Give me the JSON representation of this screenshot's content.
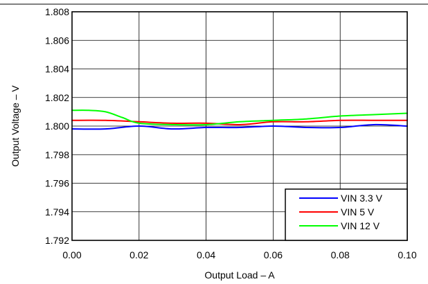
{
  "chart_data": {
    "type": "line",
    "xlabel": "Output Load – A",
    "ylabel": "Output Voltage – V",
    "xlim": [
      0.0,
      0.1
    ],
    "ylim": [
      1.792,
      1.808
    ],
    "x_ticks": [
      "0.00",
      "0.02",
      "0.04",
      "0.06",
      "0.08",
      "0.10"
    ],
    "y_ticks": [
      "1.792",
      "1.794",
      "1.796",
      "1.798",
      "1.800",
      "1.802",
      "1.804",
      "1.806",
      "1.808"
    ],
    "grid": true,
    "legend_position": "bottom-right",
    "series": [
      {
        "name": "VIN 3.3 V",
        "color": "#0000ff",
        "x": [
          0.0,
          0.01,
          0.02,
          0.03,
          0.04,
          0.05,
          0.06,
          0.07,
          0.08,
          0.09,
          0.1
        ],
        "y": [
          1.7998,
          1.7998,
          1.8,
          1.7998,
          1.7999,
          1.7999,
          1.8,
          1.7999,
          1.7999,
          1.8001,
          1.8
        ]
      },
      {
        "name": "VIN 5 V",
        "color": "#ff0000",
        "x": [
          0.0,
          0.01,
          0.02,
          0.03,
          0.04,
          0.05,
          0.06,
          0.07,
          0.08,
          0.09,
          0.1
        ],
        "y": [
          1.8004,
          1.8004,
          1.8003,
          1.8002,
          1.8002,
          1.8001,
          1.8003,
          1.8003,
          1.8004,
          1.8004,
          1.8004
        ]
      },
      {
        "name": "VIN 12 V",
        "color": "#00ff00",
        "x": [
          0.0,
          0.005,
          0.01,
          0.015,
          0.02,
          0.03,
          0.04,
          0.05,
          0.06,
          0.07,
          0.08,
          0.09,
          0.1
        ],
        "y": [
          1.8011,
          1.8011,
          1.801,
          1.8006,
          1.8002,
          1.8001,
          1.8001,
          1.8003,
          1.8004,
          1.8005,
          1.8007,
          1.8008,
          1.8009
        ]
      }
    ]
  }
}
